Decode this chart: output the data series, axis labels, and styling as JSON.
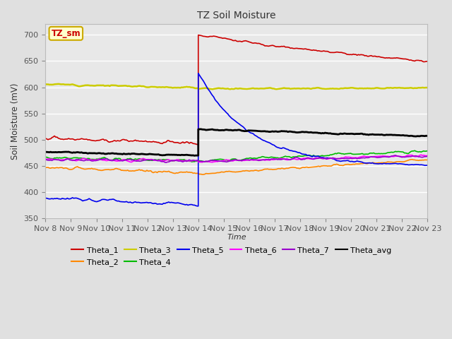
{
  "title": "TZ Soil Moisture",
  "xlabel": "Time",
  "ylabel": "Soil Moisture (mV)",
  "ylim": [
    350,
    720
  ],
  "yticks": [
    350,
    400,
    450,
    500,
    550,
    600,
    650,
    700
  ],
  "fig_bg": "#e0e0e0",
  "plot_bg": "#e8e8e8",
  "legend_label": "TZ_sm",
  "series": {
    "Theta_1": {
      "color": "#cc0000",
      "lw": 1.2
    },
    "Theta_2": {
      "color": "#ff8800",
      "lw": 1.2
    },
    "Theta_3": {
      "color": "#cccc00",
      "lw": 1.8
    },
    "Theta_4": {
      "color": "#00bb00",
      "lw": 1.2
    },
    "Theta_5": {
      "color": "#0000ee",
      "lw": 1.2
    },
    "Theta_6": {
      "color": "#ff00ff",
      "lw": 1.2
    },
    "Theta_7": {
      "color": "#9900cc",
      "lw": 1.2
    },
    "Theta_avg": {
      "color": "#000000",
      "lw": 2.0
    }
  },
  "xtick_labels": [
    "Nov 8",
    "Nov 9",
    "Nov 10",
    "Nov 11",
    "Nov 12",
    "Nov 13",
    "Nov 14",
    "Nov 15",
    "Nov 16",
    "Nov 17",
    "Nov 18",
    "Nov 19",
    "Nov 20",
    "Nov 21",
    "Nov 22",
    "Nov 23"
  ],
  "xtick_positions": [
    0,
    1,
    2,
    3,
    4,
    5,
    6,
    7,
    8,
    9,
    10,
    11,
    12,
    13,
    14,
    15
  ],
  "x_start": 0,
  "x_end": 15,
  "x_rain": 6.0
}
